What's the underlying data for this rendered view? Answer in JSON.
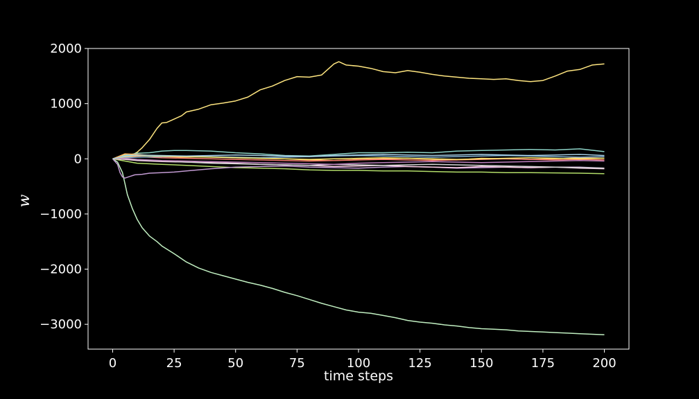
{
  "chart_data": {
    "type": "line",
    "xlabel": "time steps",
    "ylabel": "w",
    "xlim": [
      -10,
      210
    ],
    "ylim": [
      -3450,
      2000
    ],
    "xticks": [
      0,
      25,
      50,
      75,
      100,
      125,
      150,
      175,
      200
    ],
    "yticks": [
      -3000,
      -2000,
      -1000,
      0,
      1000,
      2000
    ],
    "xtick_labels": [
      "0",
      "25",
      "50",
      "75",
      "100",
      "125",
      "150",
      "175",
      "200"
    ],
    "ytick_labels": [
      "−3000",
      "−2000",
      "−1000",
      "0",
      "1000",
      "2000"
    ],
    "grid": false,
    "legend": "none",
    "background": "#000000",
    "axes_color": "#ffffff",
    "series": [
      {
        "color": "#ffe680",
        "x": [
          0,
          3,
          5,
          8,
          10,
          12,
          15,
          18,
          20,
          22,
          25,
          28,
          30,
          35,
          40,
          45,
          50,
          55,
          60,
          65,
          70,
          75,
          80,
          85,
          90,
          92,
          95,
          100,
          105,
          110,
          115,
          120,
          125,
          130,
          135,
          140,
          145,
          150,
          155,
          160,
          165,
          170,
          175,
          180,
          185,
          190,
          195,
          200
        ],
        "y": [
          0,
          40,
          80,
          70,
          120,
          200,
          350,
          550,
          650,
          660,
          720,
          780,
          850,
          900,
          980,
          1010,
          1050,
          1120,
          1250,
          1320,
          1420,
          1490,
          1480,
          1520,
          1720,
          1760,
          1700,
          1680,
          1640,
          1580,
          1560,
          1600,
          1570,
          1530,
          1500,
          1480,
          1460,
          1450,
          1440,
          1450,
          1420,
          1400,
          1420,
          1500,
          1590,
          1620,
          1700,
          1720
        ]
      },
      {
        "color": "#c2f0c2",
        "x": [
          0,
          2,
          4,
          5,
          6,
          8,
          10,
          12,
          15,
          18,
          20,
          25,
          30,
          35,
          40,
          45,
          50,
          55,
          60,
          65,
          70,
          75,
          80,
          85,
          90,
          95,
          100,
          105,
          110,
          115,
          120,
          125,
          130,
          135,
          140,
          145,
          150,
          155,
          160,
          165,
          170,
          175,
          180,
          185,
          190,
          195,
          200
        ],
        "y": [
          0,
          -60,
          -250,
          -450,
          -650,
          -900,
          -1100,
          -1250,
          -1400,
          -1500,
          -1580,
          -1720,
          -1870,
          -1980,
          -2060,
          -2120,
          -2180,
          -2240,
          -2290,
          -2350,
          -2420,
          -2480,
          -2550,
          -2620,
          -2680,
          -2740,
          -2780,
          -2800,
          -2840,
          -2880,
          -2930,
          -2960,
          -2980,
          -3010,
          -3030,
          -3060,
          -3080,
          -3090,
          -3100,
          -3120,
          -3130,
          -3140,
          -3150,
          -3160,
          -3170,
          -3180,
          -3190
        ]
      },
      {
        "color": "#8dd3c7",
        "x": [
          0,
          5,
          10,
          15,
          20,
          25,
          30,
          40,
          50,
          60,
          70,
          80,
          90,
          100,
          110,
          120,
          130,
          140,
          150,
          160,
          170,
          180,
          190,
          200
        ],
        "y": [
          0,
          60,
          100,
          110,
          140,
          150,
          150,
          140,
          110,
          90,
          60,
          50,
          80,
          110,
          110,
          120,
          110,
          140,
          150,
          160,
          170,
          160,
          180,
          130
        ]
      },
      {
        "color": "#b3de69",
        "x": [
          0,
          5,
          10,
          20,
          30,
          40,
          50,
          60,
          70,
          80,
          90,
          100,
          110,
          120,
          130,
          140,
          150,
          160,
          170,
          180,
          190,
          200
        ],
        "y": [
          0,
          -40,
          -80,
          -100,
          -120,
          -140,
          -160,
          -170,
          -180,
          -200,
          -210,
          -210,
          -220,
          -220,
          -230,
          -240,
          -240,
          -250,
          -250,
          -255,
          -260,
          -270
        ]
      },
      {
        "color": "#c39bd3",
        "x": [
          0,
          2,
          3,
          4,
          5,
          7,
          9,
          12,
          15,
          20,
          25,
          30,
          40,
          50,
          60,
          70,
          80,
          90,
          100,
          110,
          120,
          130,
          140,
          150,
          160,
          170,
          180,
          190,
          200
        ],
        "y": [
          0,
          -100,
          -250,
          -330,
          -350,
          -320,
          -290,
          -280,
          -260,
          -250,
          -240,
          -220,
          -180,
          -150,
          -140,
          -130,
          -150,
          -160,
          -170,
          -150,
          -140,
          -150,
          -170,
          -160,
          -150,
          -160,
          -150,
          -150,
          -170
        ]
      },
      {
        "color": "#fdb462",
        "x": [
          0,
          5,
          10,
          20,
          30,
          40,
          50,
          60,
          70,
          80,
          90,
          100,
          110,
          120,
          130,
          140,
          150,
          160,
          170,
          180,
          190,
          200
        ],
        "y": [
          0,
          90,
          80,
          40,
          30,
          40,
          20,
          10,
          0,
          -20,
          -30,
          -10,
          0,
          10,
          -10,
          -20,
          10,
          0,
          -10,
          0,
          20,
          10
        ]
      },
      {
        "color": "#fb8072",
        "x": [
          0,
          5,
          10,
          20,
          30,
          40,
          50,
          60,
          70,
          80,
          90,
          100,
          110,
          120,
          130,
          140,
          150,
          160,
          170,
          180,
          190,
          200
        ],
        "y": [
          0,
          30,
          40,
          20,
          10,
          0,
          -10,
          -20,
          -30,
          -40,
          -30,
          -20,
          -10,
          -20,
          -30,
          -20,
          -10,
          0,
          -10,
          -20,
          -10,
          -20
        ]
      },
      {
        "color": "#80b1d3",
        "x": [
          0,
          5,
          10,
          20,
          30,
          40,
          50,
          60,
          70,
          80,
          90,
          100,
          110,
          120,
          130,
          140,
          150,
          160,
          170,
          180,
          190,
          200
        ],
        "y": [
          0,
          20,
          30,
          40,
          50,
          40,
          30,
          20,
          30,
          40,
          50,
          60,
          50,
          40,
          30,
          40,
          50,
          60,
          50,
          40,
          30,
          40
        ]
      },
      {
        "color": "#fccde5",
        "x": [
          0,
          5,
          10,
          20,
          30,
          40,
          50,
          60,
          70,
          80,
          90,
          100,
          110,
          120,
          130,
          140,
          150,
          160,
          170,
          180,
          190,
          200
        ],
        "y": [
          0,
          -10,
          -30,
          -50,
          -60,
          -70,
          -80,
          -100,
          -110,
          -120,
          -140,
          -130,
          -120,
          -140,
          -150,
          -160,
          -140,
          -150,
          -160,
          -150,
          -170,
          -180
        ]
      },
      {
        "color": "#d9d9d9",
        "x": [
          0,
          5,
          10,
          20,
          30,
          40,
          50,
          60,
          70,
          80,
          90,
          100,
          110,
          120,
          130,
          140,
          150,
          160,
          170,
          180,
          190,
          200
        ],
        "y": [
          0,
          0,
          -20,
          -40,
          -60,
          -80,
          -90,
          -100,
          -110,
          -120,
          -100,
          -110,
          -120,
          -110,
          -100,
          -110,
          -120,
          -130,
          -140,
          -150,
          -160,
          -170
        ]
      },
      {
        "color": "#bc80bd",
        "x": [
          0,
          5,
          10,
          20,
          30,
          40,
          50,
          60,
          70,
          80,
          90,
          100,
          110,
          120,
          130,
          140,
          150,
          160,
          170,
          180,
          190,
          200
        ],
        "y": [
          0,
          10,
          -10,
          -30,
          -40,
          -50,
          -60,
          -70,
          -80,
          -90,
          -100,
          -80,
          -70,
          -60,
          -50,
          -60,
          -70,
          -60,
          -50,
          -40,
          -30,
          -40
        ]
      },
      {
        "color": "#ffed6f",
        "x": [
          0,
          5,
          10,
          20,
          30,
          40,
          50,
          60,
          70,
          80,
          90,
          100,
          110,
          120,
          130,
          140,
          150,
          160,
          170,
          180,
          190,
          200
        ],
        "y": [
          0,
          40,
          60,
          50,
          40,
          30,
          20,
          10,
          0,
          -10,
          0,
          10,
          20,
          10,
          0,
          -10,
          0,
          10,
          20,
          10,
          0,
          10
        ]
      },
      {
        "color": "#a6cee3",
        "x": [
          0,
          5,
          10,
          20,
          30,
          40,
          50,
          60,
          70,
          80,
          90,
          100,
          110,
          120,
          130,
          140,
          150,
          160,
          170,
          180,
          190,
          200
        ],
        "y": [
          0,
          50,
          70,
          60,
          50,
          60,
          70,
          60,
          50,
          40,
          60,
          70,
          80,
          70,
          60,
          70,
          80,
          70,
          60,
          70,
          80,
          60
        ]
      }
    ]
  }
}
